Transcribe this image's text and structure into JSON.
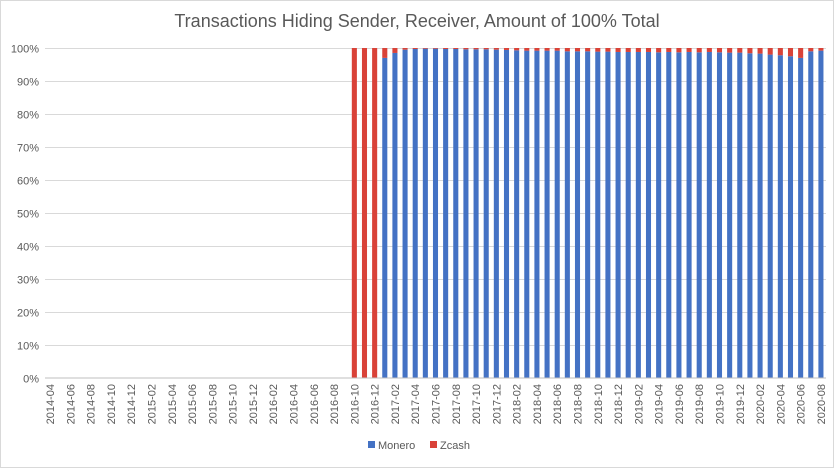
{
  "chart_data": {
    "type": "bar",
    "stacked": true,
    "title": "Transactions Hiding Sender, Receiver, Amount of 100% Total",
    "xlabel": "",
    "ylabel": "",
    "ylim": [
      0,
      100
    ],
    "y_ticks": [
      "0%",
      "10%",
      "20%",
      "30%",
      "40%",
      "50%",
      "60%",
      "70%",
      "80%",
      "90%",
      "100%"
    ],
    "grid": true,
    "legend_position": "bottom",
    "categories": [
      "2014-04",
      "2014-05",
      "2014-06",
      "2014-07",
      "2014-08",
      "2014-09",
      "2014-10",
      "2014-11",
      "2014-12",
      "2015-01",
      "2015-02",
      "2015-03",
      "2015-04",
      "2015-05",
      "2015-06",
      "2015-07",
      "2015-08",
      "2015-09",
      "2015-10",
      "2015-11",
      "2015-12",
      "2016-01",
      "2016-02",
      "2016-03",
      "2016-04",
      "2016-05",
      "2016-06",
      "2016-07",
      "2016-08",
      "2016-09",
      "2016-10",
      "2016-11",
      "2016-12",
      "2017-01",
      "2017-02",
      "2017-03",
      "2017-04",
      "2017-05",
      "2017-06",
      "2017-07",
      "2017-08",
      "2017-09",
      "2017-10",
      "2017-11",
      "2017-12",
      "2018-01",
      "2018-02",
      "2018-03",
      "2018-04",
      "2018-05",
      "2018-06",
      "2018-07",
      "2018-08",
      "2018-09",
      "2018-10",
      "2018-11",
      "2018-12",
      "2019-01",
      "2019-02",
      "2019-03",
      "2019-04",
      "2019-05",
      "2019-06",
      "2019-07",
      "2019-08",
      "2019-09",
      "2019-10",
      "2019-11",
      "2019-12",
      "2020-01",
      "2020-02",
      "2020-03",
      "2020-04",
      "2020-05",
      "2020-06",
      "2020-07",
      "2020-08"
    ],
    "series": [
      {
        "name": "Monero",
        "color": "#4472C4",
        "values": [
          0,
          0,
          0,
          0,
          0,
          0,
          0,
          0,
          0,
          0,
          0,
          0,
          0,
          0,
          0,
          0,
          0,
          0,
          0,
          0,
          0,
          0,
          0,
          0,
          0,
          0,
          0,
          0,
          0,
          0,
          0,
          0,
          0,
          97,
          98.5,
          99.5,
          99.7,
          99.8,
          99.8,
          99.7,
          99.7,
          99.6,
          99.6,
          99.6,
          99.5,
          99.4,
          99.3,
          99.2,
          99.2,
          99.2,
          99.2,
          99,
          99,
          99,
          98.9,
          98.9,
          98.8,
          98.8,
          98.8,
          98.8,
          98.7,
          98.8,
          98.7,
          98.8,
          98.7,
          98.8,
          98.7,
          98.6,
          98.6,
          98.4,
          98.3,
          98,
          97.8,
          97.5,
          97,
          99,
          99.2
        ]
      },
      {
        "name": "Zcash",
        "color": "#D94238",
        "values": [
          0,
          0,
          0,
          0,
          0,
          0,
          0,
          0,
          0,
          0,
          0,
          0,
          0,
          0,
          0,
          0,
          0,
          0,
          0,
          0,
          0,
          0,
          0,
          0,
          0,
          0,
          0,
          0,
          0,
          0,
          100,
          100,
          100,
          3,
          1.5,
          0.5,
          0.3,
          0.2,
          0.2,
          0.3,
          0.3,
          0.4,
          0.4,
          0.4,
          0.5,
          0.6,
          0.7,
          0.8,
          0.8,
          0.8,
          0.8,
          1,
          1,
          1,
          1.1,
          1.1,
          1.2,
          1.2,
          1.2,
          1.2,
          1.3,
          1.2,
          1.3,
          1.2,
          1.3,
          1.2,
          1.3,
          1.4,
          1.4,
          1.6,
          1.7,
          2,
          2.2,
          2.5,
          3,
          1,
          0.8
        ]
      }
    ]
  }
}
